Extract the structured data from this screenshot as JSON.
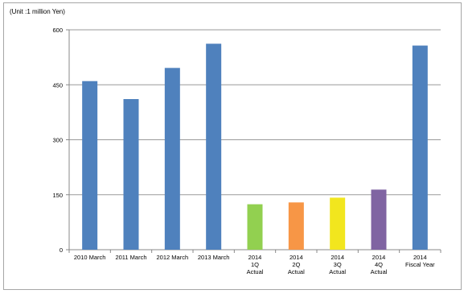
{
  "chart_data": {
    "type": "bar",
    "unit_label": "(Unit :1 million  Yen)",
    "categories": [
      [
        "2010 March"
      ],
      [
        "2011 March"
      ],
      [
        "2012 March"
      ],
      [
        "2013 March"
      ],
      [
        "2014",
        "1Q",
        "Actual"
      ],
      [
        "2014",
        "2Q",
        "Actual"
      ],
      [
        "2014",
        "3Q",
        "Actual"
      ],
      [
        "2014",
        "4Q",
        "Actual"
      ],
      [
        "2014",
        "Fiscal Year"
      ]
    ],
    "values": [
      460,
      411,
      496,
      562,
      124,
      129,
      142,
      164,
      557
    ],
    "colors": [
      "#4f81bd",
      "#4f81bd",
      "#4f81bd",
      "#4f81bd",
      "#92d050",
      "#f79646",
      "#f2e61e",
      "#8064a2",
      "#4f81bd"
    ],
    "yticks": [
      0,
      150,
      300,
      450,
      600
    ],
    "ylim": [
      0,
      600
    ],
    "grid": true,
    "legend": "none"
  }
}
